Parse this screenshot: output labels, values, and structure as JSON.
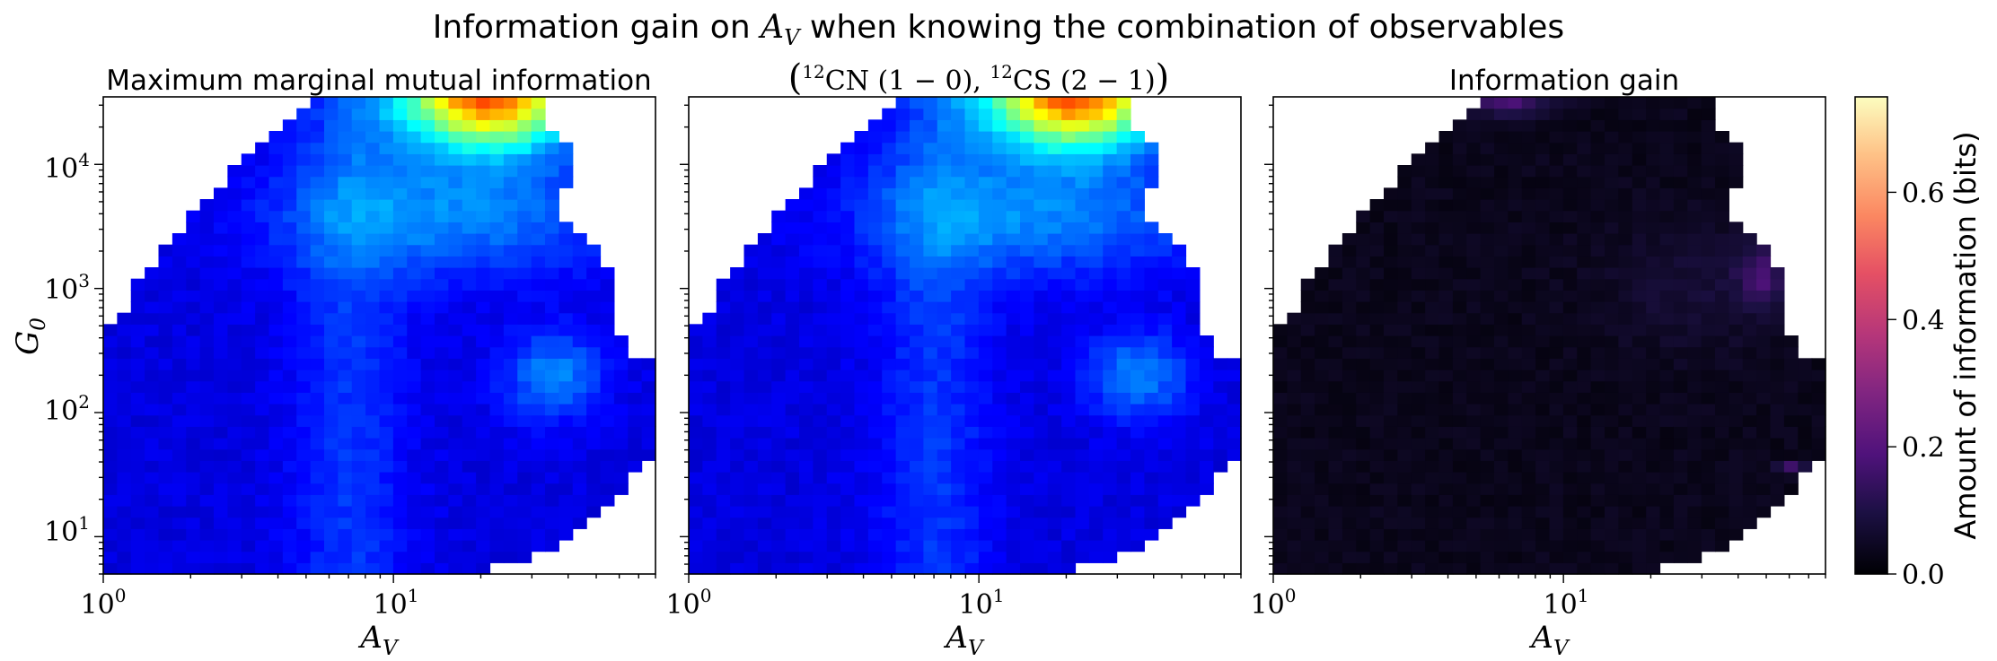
{
  "figure": {
    "suptitle": "Information gain on A_V when knowing the combination of observables"
  },
  "chart_data": [
    {
      "type": "heatmap",
      "panel": "left",
      "title": "Maximum marginal mutual information",
      "xlabel": "A_V",
      "ylabel": "G_0",
      "x_scale": "log",
      "y_scale": "log",
      "xlim": [
        1,
        80
      ],
      "ylim": [
        5,
        35000
      ],
      "x_ticks": [
        "10^0",
        "10^1"
      ],
      "y_ticks": [
        "10^1",
        "10^2",
        "10^3",
        "10^4"
      ],
      "colormap": "jet",
      "color_range": [
        0,
        0.75
      ],
      "peak_value": 0.65,
      "peak_location": {
        "A_V": 22,
        "G_0": 30000
      }
    },
    {
      "type": "heatmap",
      "panel": "middle",
      "title": "(12CN (1 − 0), 12CS (2 − 1))",
      "xlabel": "A_V",
      "ylabel": "",
      "x_scale": "log",
      "y_scale": "log",
      "xlim": [
        1,
        80
      ],
      "ylim": [
        5,
        35000
      ],
      "x_ticks": [
        "10^0",
        "10^1"
      ],
      "colormap": "jet",
      "color_range": [
        0,
        0.75
      ],
      "peak_value": 0.62,
      "peak_location": {
        "A_V": 22,
        "G_0": 30000
      }
    },
    {
      "type": "heatmap",
      "panel": "right",
      "title": "Information gain",
      "xlabel": "A_V",
      "ylabel": "",
      "x_scale": "log",
      "y_scale": "log",
      "xlim": [
        1,
        80
      ],
      "ylim": [
        5,
        35000
      ],
      "x_ticks": [
        "10^0",
        "10^1"
      ],
      "colormap": "magma",
      "color_range": [
        0,
        0.75
      ],
      "peak_value": 0.22,
      "peak_location": {
        "A_V": 6,
        "G_0": 30000
      }
    }
  ],
  "colorbar": {
    "label": "Amount of information (bits)",
    "ticks": [
      0.0,
      0.2,
      0.4,
      0.6
    ],
    "tick_labels": [
      "0.0",
      "0.2",
      "0.4",
      "0.6"
    ],
    "range": [
      0,
      0.75
    ],
    "colormap": "magma"
  }
}
